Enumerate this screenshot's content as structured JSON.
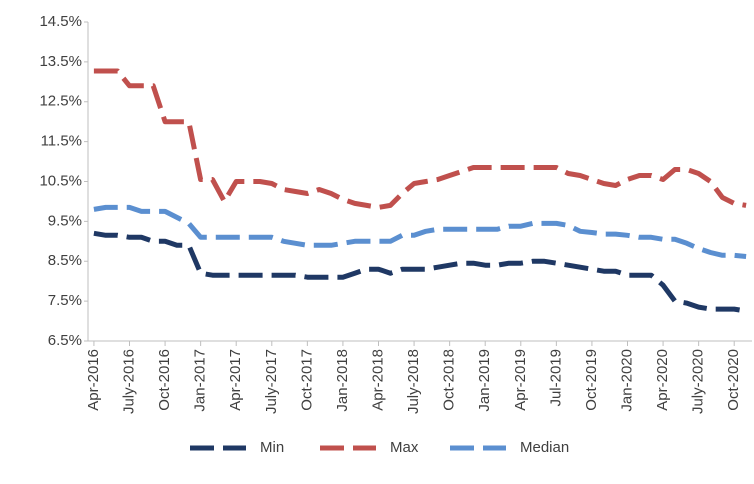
{
  "chart_data": {
    "type": "line",
    "categories": [
      "Apr-2016",
      null,
      null,
      "July-2016",
      null,
      null,
      "Oct-2016",
      null,
      null,
      "Jan-2017",
      null,
      null,
      "Apr-2017",
      null,
      null,
      "July-2017",
      null,
      null,
      "Oct-2017",
      null,
      null,
      "Jan-2018",
      null,
      null,
      "Apr-2018",
      null,
      null,
      "July-2018",
      null,
      null,
      "Oct-2018",
      null,
      null,
      "Jan-2019",
      null,
      null,
      "Apr-2019",
      null,
      null,
      "Jul-2019",
      null,
      null,
      "Oct-2019",
      null,
      null,
      "Jan-2020",
      null,
      null,
      "Apr-2020",
      null,
      null,
      "July-2020",
      null,
      null,
      "Oct-2020",
      null
    ],
    "series": [
      {
        "name": "Min",
        "color": "#1f3864",
        "values": [
          9.2,
          9.15,
          9.15,
          9.1,
          9.1,
          9.0,
          9.0,
          8.9,
          8.9,
          8.2,
          8.15,
          8.15,
          8.15,
          8.15,
          8.15,
          8.15,
          8.15,
          8.15,
          8.1,
          8.1,
          8.1,
          8.1,
          8.2,
          8.3,
          8.3,
          8.2,
          8.3,
          8.3,
          8.3,
          8.35,
          8.4,
          8.45,
          8.45,
          8.4,
          8.4,
          8.45,
          8.45,
          8.5,
          8.5,
          8.45,
          8.4,
          8.35,
          8.3,
          8.25,
          8.25,
          8.15,
          8.15,
          8.15,
          7.9,
          7.5,
          7.45,
          7.35,
          7.3,
          7.3,
          7.3,
          7.25
        ]
      },
      {
        "name": "Max",
        "color": "#c0504d",
        "values": [
          13.27,
          13.27,
          13.27,
          12.9,
          12.9,
          12.9,
          12.0,
          12.0,
          12.0,
          10.55,
          10.55,
          10.0,
          10.5,
          10.5,
          10.5,
          10.45,
          10.3,
          10.25,
          10.2,
          10.3,
          10.2,
          10.05,
          9.95,
          9.9,
          9.85,
          9.9,
          10.2,
          10.45,
          10.5,
          10.55,
          10.65,
          10.75,
          10.85,
          10.85,
          10.85,
          10.85,
          10.85,
          10.85,
          10.85,
          10.85,
          10.7,
          10.65,
          10.55,
          10.45,
          10.4,
          10.55,
          10.65,
          10.65,
          10.55,
          10.8,
          10.8,
          10.7,
          10.5,
          10.1,
          9.95,
          9.9
        ]
      },
      {
        "name": "Median",
        "color": "#5b8fd0",
        "values": [
          9.8,
          9.85,
          9.85,
          9.85,
          9.75,
          9.75,
          9.75,
          9.6,
          9.45,
          9.1,
          9.1,
          9.1,
          9.1,
          9.1,
          9.1,
          9.1,
          9.0,
          8.95,
          8.9,
          8.9,
          8.9,
          8.95,
          9.0,
          9.0,
          9.0,
          9.0,
          9.15,
          9.15,
          9.25,
          9.3,
          9.3,
          9.3,
          9.3,
          9.3,
          9.3,
          9.38,
          9.38,
          9.45,
          9.45,
          9.45,
          9.4,
          9.25,
          9.22,
          9.18,
          9.18,
          9.15,
          9.1,
          9.1,
          9.05,
          9.05,
          8.95,
          8.82,
          8.72,
          8.65,
          8.65,
          8.62
        ]
      }
    ],
    "ylim": [
      6.5,
      14.5
    ],
    "yticks": [
      {
        "value": 6.5,
        "label": "6.5%"
      },
      {
        "value": 7.5,
        "label": "7.5%"
      },
      {
        "value": 8.5,
        "label": "8.5%"
      },
      {
        "value": 9.5,
        "label": "9.5%"
      },
      {
        "value": 10.5,
        "label": "10.5%"
      },
      {
        "value": 11.5,
        "label": "11.5%"
      },
      {
        "value": 12.5,
        "label": "12.5%"
      },
      {
        "value": 13.5,
        "label": "13.5%"
      },
      {
        "value": 14.5,
        "label": "14.5%"
      }
    ],
    "grid": false,
    "legend": "bottom"
  }
}
